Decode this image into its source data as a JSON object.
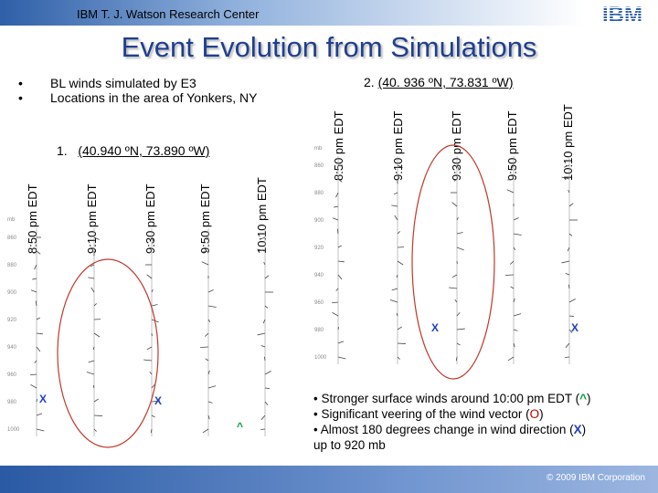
{
  "header": {
    "text": "IBM T. J. Watson Research Center",
    "logo_text": "IBM"
  },
  "title": "Event Evolution from Simulations",
  "bullets": [
    {
      "marker": "•",
      "text": "BL winds simulated by E3"
    },
    {
      "marker": "•",
      "text": "Locations in the area of Yonkers, NY"
    }
  ],
  "location1": {
    "prefix": "1.",
    "coords": "(40.940 ºN, 73.890 ºW)"
  },
  "location2": {
    "prefix": "2.",
    "coords": "(40. 936 ºN, 73.831 ºW)"
  },
  "panel1": {
    "times": [
      "8:50 pm EDT",
      "9:10 pm EDT",
      "9:30 pm EDT",
      "9:50 pm EDT",
      "10:10 pm EDT"
    ],
    "axis_label": "mb",
    "levels": [
      "860",
      "880",
      "900",
      "920",
      "940",
      "960",
      "980",
      "1000"
    ],
    "marks": [
      {
        "symbol": "X",
        "color": "#1f3fbf"
      },
      {
        "symbol": "X",
        "color": "#1f3fbf"
      },
      {
        "symbol": "^",
        "color": "#00a040"
      }
    ]
  },
  "panel2": {
    "times": [
      "8:50 pm EDT",
      "9:10 pm EDT",
      "9:30 pm EDT",
      "9:50 pm EDT",
      "10:10 pm EDT"
    ],
    "axis_label": "mb",
    "levels": [
      "860",
      "880",
      "900",
      "920",
      "940",
      "960",
      "980",
      "1000"
    ],
    "marks": [
      {
        "symbol": "X",
        "color": "#1f3fbf"
      },
      {
        "symbol": "X",
        "color": "#1f3fbf"
      }
    ]
  },
  "notes": {
    "line1_pre": "• Stronger surface winds around 10:00 pm EDT (",
    "line1_sym": "^",
    "line1_post": ")",
    "line2_pre": "• Significant veering of the wind vector (",
    "line2_sym": "O",
    "line2_post": ")",
    "line3_pre": "•  Almost 180 degrees change in wind direction (",
    "line3_sym": "X",
    "line3_post": ")",
    "line4": "up to 920 mb"
  },
  "footer": {
    "text": "© 2009 IBM Corporation"
  },
  "colors": {
    "title": "#1f3f8f",
    "ellipse": "#c0392b",
    "x_mark": "#1f3fbf",
    "caret_mark": "#00a040"
  }
}
